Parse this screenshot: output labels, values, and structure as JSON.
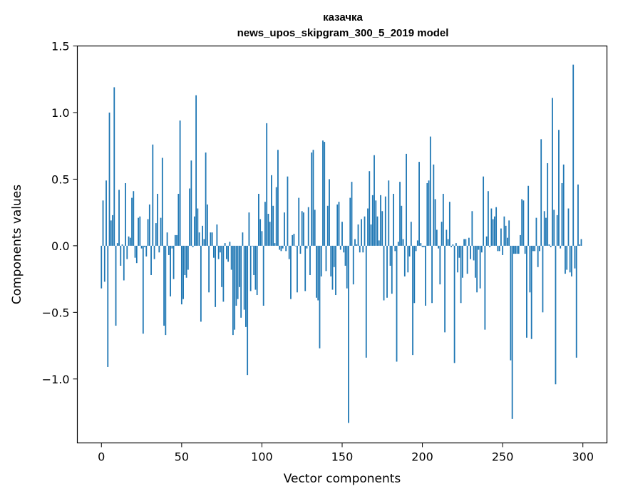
{
  "chart_data": {
    "type": "bar",
    "title": "казачка",
    "subtitle": "news_upos_skipgram_300_5_2019 model",
    "xlabel": "Vector components",
    "ylabel": "Components values",
    "xlim": [
      -15,
      315
    ],
    "ylim": [
      -1.48,
      1.5
    ],
    "xticks": [
      0,
      50,
      100,
      150,
      200,
      250,
      300
    ],
    "xtick_labels": [
      "0",
      "50",
      "100",
      "150",
      "200",
      "250",
      "300"
    ],
    "yticks": [
      -1.0,
      -0.5,
      0.0,
      0.5,
      1.0,
      1.5
    ],
    "ytick_labels": [
      "−1.0",
      "−0.5",
      "0.0",
      "0.5",
      "1.0",
      "1.5"
    ],
    "bar_color": "#1f77b4",
    "values": [
      -0.32,
      0.34,
      -0.27,
      0.49,
      -0.91,
      1.0,
      0.19,
      0.23,
      1.19,
      -0.6,
      0.02,
      0.42,
      -0.15,
      0.01,
      -0.26,
      0.47,
      -0.1,
      0.07,
      0.06,
      0.36,
      0.41,
      -0.09,
      -0.13,
      0.21,
      0.22,
      -0.02,
      -0.66,
      -0.01,
      -0.08,
      0.2,
      0.31,
      -0.22,
      0.76,
      -0.1,
      0.17,
      0.39,
      -0.05,
      0.21,
      0.66,
      -0.6,
      -0.67,
      0.1,
      -0.07,
      -0.38,
      -0.02,
      -0.25,
      0.08,
      0.08,
      0.39,
      0.94,
      -0.44,
      -0.4,
      -0.22,
      -0.24,
      -0.18,
      0.43,
      0.64,
      -0.01,
      0.22,
      1.13,
      0.28,
      0.1,
      -0.57,
      0.15,
      0.05,
      0.7,
      0.31,
      -0.35,
      0.1,
      0.1,
      -0.09,
      -0.46,
      0.16,
      -0.1,
      -0.05,
      -0.31,
      -0.42,
      0.02,
      -0.1,
      -0.12,
      0.03,
      -0.18,
      -0.67,
      -0.63,
      -0.45,
      -0.4,
      -0.31,
      -0.54,
      0.1,
      -0.48,
      -0.61,
      -0.97,
      0.25,
      -0.34,
      0.0,
      -0.22,
      -0.33,
      -0.37,
      0.39,
      0.2,
      0.11,
      -0.45,
      0.33,
      0.92,
      0.24,
      0.18,
      0.53,
      0.3,
      0.02,
      0.44,
      0.72,
      -0.03,
      -0.04,
      -0.02,
      0.25,
      -0.04,
      0.52,
      -0.1,
      -0.4,
      0.08,
      0.09,
      0.0,
      -0.35,
      0.36,
      -0.06,
      0.26,
      0.25,
      -0.34,
      -0.02,
      0.29,
      -0.22,
      0.7,
      0.72,
      0.27,
      -0.39,
      -0.41,
      -0.77,
      -0.23,
      0.79,
      0.78,
      -0.19,
      0.3,
      0.5,
      -0.23,
      -0.33,
      -0.16,
      -0.37,
      0.31,
      0.33,
      -0.03,
      0.18,
      -0.05,
      -0.15,
      -0.32,
      -1.33,
      0.36,
      0.48,
      -0.29,
      0.05,
      0.01,
      0.16,
      -0.05,
      0.2,
      -0.05,
      0.22,
      -0.84,
      0.28,
      0.56,
      0.16,
      0.38,
      0.68,
      0.34,
      0.22,
      0.04,
      0.38,
      0.26,
      -0.41,
      0.37,
      -0.39,
      0.49,
      -0.15,
      -0.36,
      0.39,
      -0.04,
      -0.87,
      0.03,
      0.48,
      0.3,
      0.05,
      -0.23,
      0.69,
      -0.2,
      -0.08,
      0.18,
      -0.82,
      -0.43,
      -0.04,
      0.04,
      0.63,
      0.02,
      -0.01,
      -0.01,
      -0.45,
      0.47,
      0.49,
      0.82,
      -0.43,
      0.61,
      0.35,
      0.12,
      -0.02,
      -0.29,
      0.18,
      0.39,
      -0.65,
      0.12,
      0.05,
      0.33,
      -0.01,
      0.01,
      -0.88,
      0.02,
      -0.2,
      -0.09,
      -0.43,
      -0.24,
      0.05,
      0.05,
      -0.21,
      0.06,
      -0.1,
      0.26,
      -0.11,
      -0.24,
      -0.35,
      -0.03,
      -0.32,
      -0.05,
      0.52,
      -0.63,
      0.07,
      0.41,
      -0.01,
      0.28,
      0.2,
      0.22,
      0.29,
      -0.04,
      -0.04,
      0.13,
      -0.07,
      0.22,
      0.15,
      0.06,
      0.19,
      -0.86,
      -1.3,
      -0.06,
      -0.06,
      -0.06,
      -0.06,
      0.08,
      0.35,
      0.34,
      -0.06,
      -0.69,
      0.45,
      -0.35,
      -0.7,
      -0.04,
      -0.04,
      0.21,
      -0.16,
      -0.04,
      0.8,
      -0.5,
      0.26,
      0.21,
      0.62,
      0.01,
      -0.01,
      1.11,
      0.27,
      -1.04,
      0.23,
      0.87,
      -0.02,
      0.47,
      0.61,
      -0.21,
      -0.18,
      0.28,
      -0.2,
      -0.23,
      1.36,
      -0.17,
      -0.84,
      0.46,
      0.01,
      0.05
    ]
  }
}
